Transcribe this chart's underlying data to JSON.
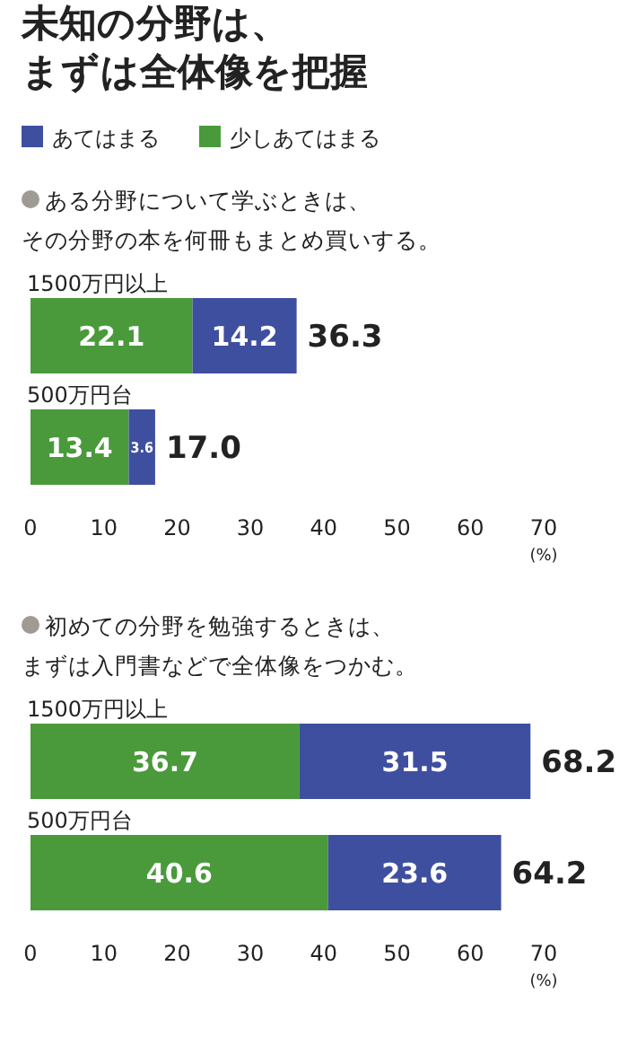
{
  "chart_data": [
    {
      "type": "bar",
      "orientation": "horizontal",
      "stacked": true,
      "title": "未知の分野は、まずは全体像を把握",
      "subtitle": "ある分野について学ぶときは、その分野の本を何冊もまとめ買いする。",
      "categories": [
        "1500万円以上",
        "500万円台"
      ],
      "series": [
        {
          "name": "少しあてはまる",
          "color": "#4a9a3c",
          "values": [
            22.1,
            13.4
          ]
        },
        {
          "name": "あてはまる",
          "color": "#3f4fa0",
          "values": [
            14.2,
            3.6
          ]
        }
      ],
      "totals": [
        "36.3",
        "17.0"
      ],
      "data_labels": true,
      "legend": "top",
      "xlim": [
        0,
        70
      ],
      "xticks": [
        0,
        10,
        20,
        30,
        40,
        50,
        60,
        70
      ],
      "xlabel": "(%)",
      "grid": false
    },
    {
      "type": "bar",
      "orientation": "horizontal",
      "stacked": true,
      "title": "初めての分野を勉強するときは、まずは入門書などで全体像をつかむ。",
      "categories": [
        "1500万円以上",
        "500万円台"
      ],
      "series": [
        {
          "color": "#4a9a3c",
          "values": [
            36.7,
            40.6
          ]
        },
        {
          "color": "#3f4fa0",
          "values": [
            31.5,
            23.6
          ]
        }
      ],
      "totals": [
        "68.2",
        "64.2"
      ],
      "data_labels": true,
      "legend": false,
      "xlim": [
        0,
        70
      ],
      "xticks": [
        0,
        10,
        20,
        30,
        40,
        50,
        60,
        70
      ],
      "xlabel": "(%)",
      "grid": false
    }
  ]
}
